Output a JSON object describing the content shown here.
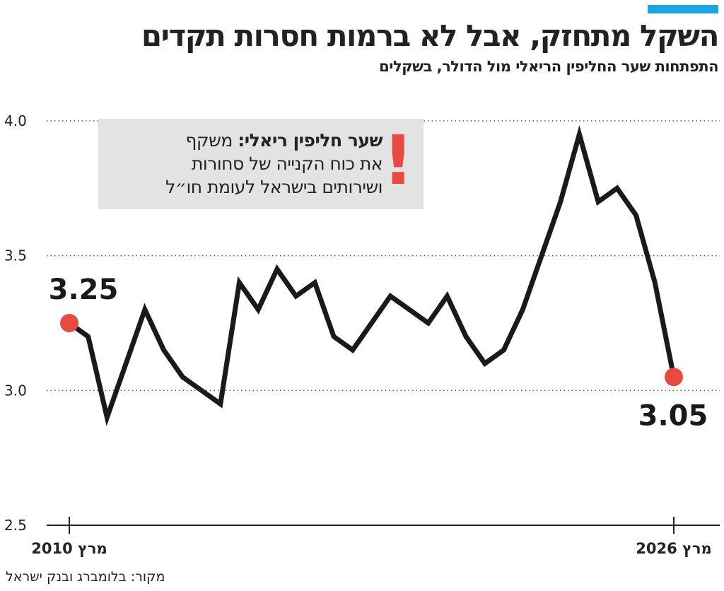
{
  "title": "השקל מתחזק, אבל לא ברמות חסרות תקדים",
  "subtitle": "התפתחות שער החליפין הריאלי מול הדולר, בשקלים",
  "source": "מקור: בלומברג ובנק ישראל",
  "callout": {
    "bold": "שער חליפין ריאלי:",
    "line1": "משקף",
    "line2": "את כוח הקנייה של סחורות",
    "line3": "ושירותים בישראל לעומת חו״ל",
    "mark": "!"
  },
  "colors": {
    "accent": "#1aa6e6",
    "line": "#1a1a1a",
    "marker": "#e84a3f",
    "callout_bg": "#e3e3e3",
    "grid": "#555555"
  },
  "chart_data": {
    "type": "line",
    "title": "השקל מתחזק, אבל לא ברמות חסרות תקדים",
    "subtitle": "התפתחות שער החליפין הריאלי מול הדולר, בשקלים",
    "xlabel": "",
    "ylabel": "",
    "x_tick_labels": [
      "מרץ 2010",
      "מרץ 2026"
    ],
    "ylim": [
      2.5,
      4.0
    ],
    "yticks": [
      2.5,
      3.0,
      3.5,
      4.0
    ],
    "grid": "horizontal-dotted",
    "x": [
      2010.17,
      2010.67,
      2011.17,
      2011.67,
      2012.17,
      2012.67,
      2013.17,
      2013.67,
      2014.17,
      2014.67,
      2015.17,
      2015.67,
      2016.17,
      2016.67,
      2017.17,
      2017.67,
      2018.17,
      2018.67,
      2019.17,
      2019.67,
      2020.17,
      2020.67,
      2021.17,
      2021.67,
      2022.17,
      2022.67,
      2023.17,
      2023.67,
      2024.17,
      2024.67,
      2025.17,
      2025.67,
      2026.17
    ],
    "values": [
      3.25,
      3.2,
      2.9,
      3.1,
      3.3,
      3.15,
      3.05,
      3.0,
      2.95,
      3.4,
      3.3,
      3.45,
      3.35,
      3.4,
      3.2,
      3.15,
      3.25,
      3.35,
      3.3,
      3.25,
      3.35,
      3.2,
      3.1,
      3.15,
      3.3,
      3.5,
      3.7,
      3.95,
      3.7,
      3.75,
      3.65,
      3.4,
      3.05
    ],
    "annotations": [
      {
        "label": "3.25",
        "x": 2010.17,
        "y": 3.25
      },
      {
        "label": "3.05",
        "x": 2026.17,
        "y": 3.05
      }
    ]
  }
}
